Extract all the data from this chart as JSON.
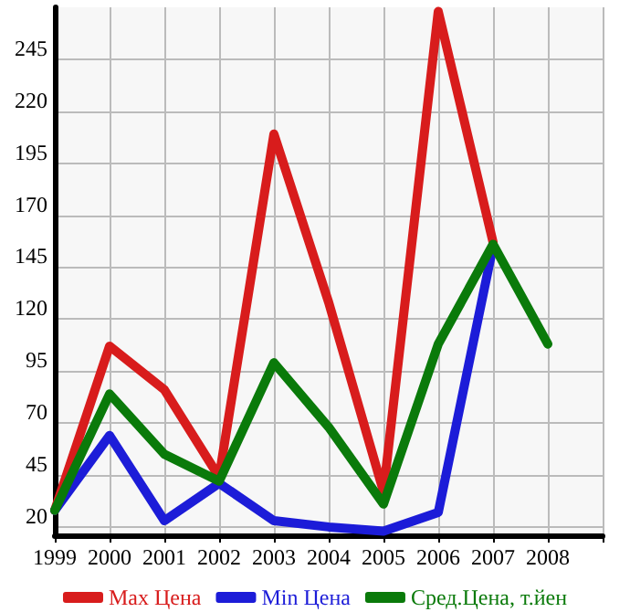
{
  "chart_data": {
    "type": "line",
    "x": [
      1999,
      2000,
      2001,
      2002,
      2003,
      2004,
      2005,
      2006,
      2007,
      2008
    ],
    "series": [
      {
        "name": "Max Цена",
        "color": "#d81c1c",
        "values": [
          28,
          107,
          86,
          44,
          209,
          128,
          37,
          268,
          157,
          null
        ]
      },
      {
        "name": "Min Цена",
        "color": "#1c1cd8",
        "values": [
          28,
          64,
          23,
          41,
          23,
          20,
          18,
          27,
          155,
          null
        ]
      },
      {
        "name": "Сред.Цена, т.йен",
        "color": "#0a7a0a",
        "values": [
          28,
          84,
          55,
          42,
          99,
          68,
          31,
          108,
          156,
          108
        ]
      }
    ],
    "xlim": [
      1999,
      2009
    ],
    "xticks": [
      1999,
      2000,
      2001,
      2002,
      2003,
      2004,
      2005,
      2006,
      2007,
      2008,
      {
        "value": 2009,
        "label": null
      }
    ],
    "ylim": [
      16,
      270
    ],
    "yticks": [
      20,
      45,
      70,
      95,
      120,
      145,
      170,
      195,
      220,
      245
    ],
    "grid": true,
    "legend": "bottom",
    "marker": "none",
    "line_style": "solid"
  }
}
